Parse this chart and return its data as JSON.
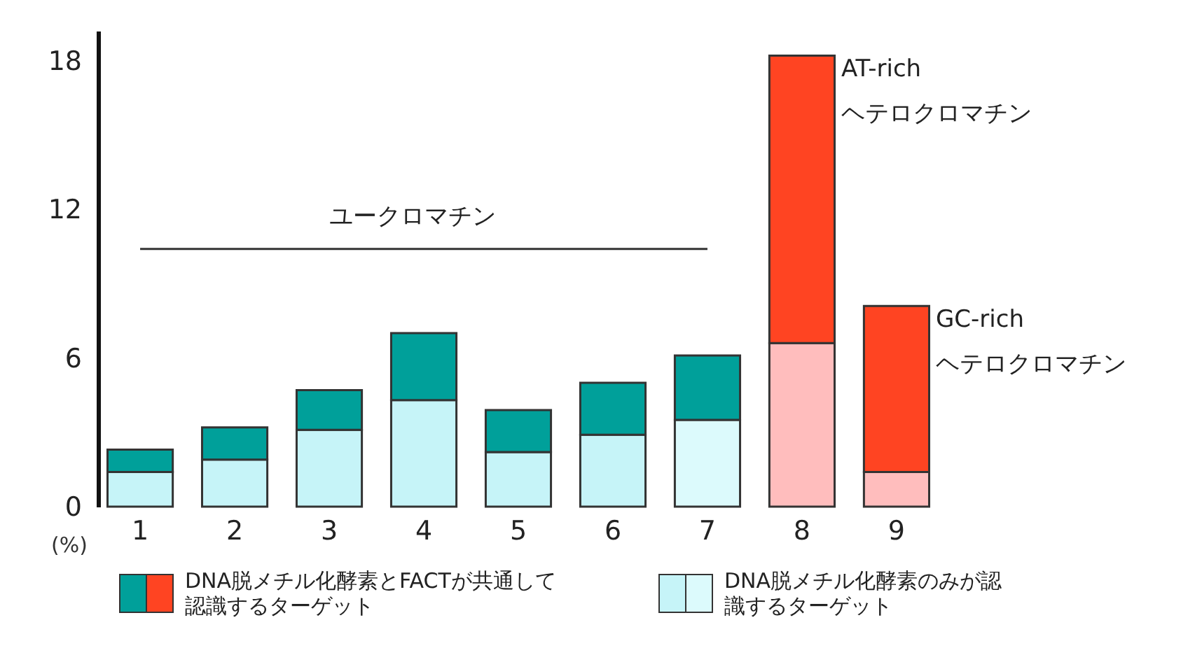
{
  "chart_data": {
    "type": "bar",
    "stacked": true,
    "ylabel": "(%)",
    "legend": "bottom",
    "categories": [
      "1",
      "2",
      "3",
      "4",
      "5",
      "6",
      "7",
      "8",
      "9"
    ],
    "series": [
      {
        "name": "DNA脱メチル化酵素のみが認識するターゲット",
        "colors": [
          "#c6f4f8",
          "#c6f4f8",
          "#c6f4f8",
          "#c6f4f8",
          "#c6f4f8",
          "#c6f4f8",
          "#dcfafc",
          "#ffbdbd",
          "#ffbdbd"
        ],
        "values": [
          1.4,
          1.9,
          3.1,
          4.3,
          2.2,
          2.9,
          3.5,
          6.6,
          1.4
        ]
      },
      {
        "name": "DNA脱メチル化酵素とFACTが共通して認識するターゲット",
        "colors": [
          "#00a09a",
          "#00a09a",
          "#00a09a",
          "#00a09a",
          "#00a09a",
          "#00a09a",
          "#00a09a",
          "#ff4422",
          "#ff4422"
        ],
        "values": [
          0.9,
          1.3,
          1.6,
          2.7,
          1.7,
          2.1,
          2.6,
          11.6,
          6.7
        ]
      },
      {
        "type": "line",
        "color": "#333333",
        "marker": "none",
        "values": [
          10.4,
          10.4,
          10.4,
          10.4,
          10.4,
          10.4,
          10.4,
          null,
          null
        ]
      }
    ],
    "ylim": [
      0,
      19.2
    ],
    "yticks": [
      0,
      6,
      12,
      18
    ],
    "annotations": [
      {
        "text": "ユークロマチン",
        "x": "4",
        "y": 10.4
      },
      {
        "text": "AT-rich\nヘテロクロマチン",
        "x": "8",
        "y": 18.2
      },
      {
        "text": "GC-rich\nヘテロクロマチン",
        "x": "9",
        "y": 8.1
      }
    ]
  }
}
